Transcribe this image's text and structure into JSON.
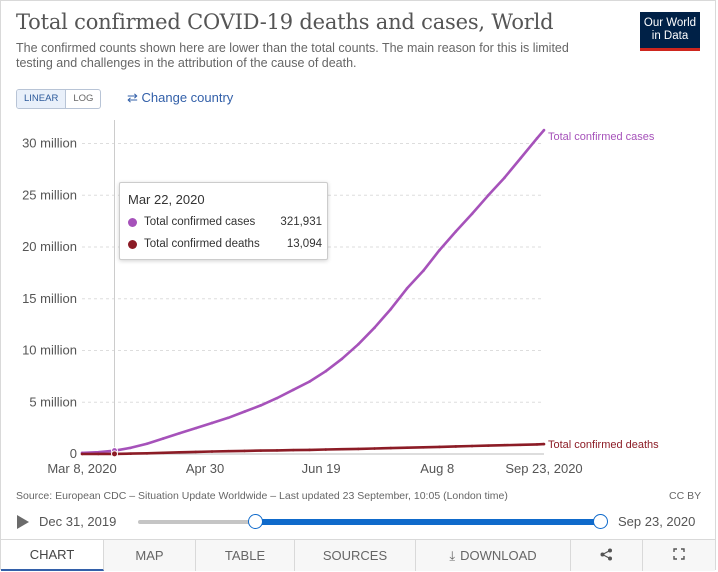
{
  "header": {
    "title": "Total confirmed COVID-19 deaths and cases, World",
    "subtitle": "The confirmed counts shown here are lower than the total counts. The main reason for this is limited testing and challenges in the attribution of the cause of death.",
    "logo_line1": "Our World",
    "logo_line2": "in Data"
  },
  "controls": {
    "linear_label": "LINEAR",
    "log_label": "LOG",
    "change_country_label": "Change country",
    "change_country_icon": "swap-arrows-icon"
  },
  "tooltip": {
    "date": "Mar 22, 2020",
    "rows": [
      {
        "label": "Total confirmed cases",
        "value": "321,931",
        "color": "#a652ba"
      },
      {
        "label": "Total confirmed deaths",
        "value": "13,094",
        "color": "#8c1c26"
      }
    ]
  },
  "chart_data": {
    "type": "line",
    "title": "Total confirmed COVID-19 deaths and cases, World",
    "xlabel": "",
    "ylabel": "",
    "x_ticks": [
      "Mar 8, 2020",
      "Apr 30",
      "Jun 19",
      "Aug 8",
      "Sep 23, 2020"
    ],
    "y_ticks": [
      "0",
      "5 million",
      "10 million",
      "15 million",
      "20 million",
      "25 million",
      "30 million"
    ],
    "ylim": [
      0,
      31500000
    ],
    "x_range_days": [
      0,
      199
    ],
    "grid": true,
    "hover_day": 14,
    "series": [
      {
        "name": "Total confirmed cases",
        "label": "Total confirmed cases",
        "color": "#a652ba",
        "x": [
          0,
          7,
          14,
          21,
          28,
          35,
          42,
          49,
          56,
          63,
          70,
          77,
          84,
          91,
          98,
          105,
          112,
          119,
          126,
          133,
          140,
          147,
          154,
          161,
          168,
          175,
          182,
          189,
          196,
          199
        ],
        "y": [
          110000,
          170000,
          321931,
          600000,
          1000000,
          1500000,
          2000000,
          2500000,
          3000000,
          3500000,
          4100000,
          4700000,
          5400000,
          6200000,
          7000000,
          8000000,
          9200000,
          10600000,
          12200000,
          14000000,
          16000000,
          17700000,
          19700000,
          21500000,
          23200000,
          25000000,
          26700000,
          28600000,
          30500000,
          31300000
        ]
      },
      {
        "name": "Total confirmed deaths",
        "label": "Total confirmed deaths",
        "color": "#8c1c26",
        "x": [
          0,
          7,
          14,
          21,
          28,
          35,
          42,
          49,
          56,
          63,
          70,
          77,
          84,
          91,
          98,
          105,
          112,
          119,
          126,
          133,
          140,
          147,
          154,
          161,
          168,
          175,
          182,
          189,
          196,
          199
        ],
        "y": [
          3500,
          6500,
          13094,
          35000,
          65000,
          115000,
          165000,
          205000,
          240000,
          270000,
          300000,
          325000,
          350000,
          375000,
          400000,
          430000,
          460000,
          490000,
          530000,
          570000,
          610000,
          650000,
          690000,
          730000,
          770000,
          810000,
          850000,
          890000,
          930000,
          960000
        ]
      }
    ]
  },
  "footer": {
    "source": "Source: European CDC – Situation Update Worldwide – Last updated 23 September, 10:05 (London time)",
    "license": "CC BY"
  },
  "timeline": {
    "start_label": "Dec 31, 2019",
    "end_label": "Sep 23, 2020",
    "selection_start_fraction": 0.255,
    "selection_end_fraction": 1.0
  },
  "tabs": [
    {
      "label": "CHART",
      "icon": null,
      "active": true
    },
    {
      "label": "MAP",
      "icon": null,
      "active": false
    },
    {
      "label": "TABLE",
      "icon": null,
      "active": false
    },
    {
      "label": "SOURCES",
      "icon": null,
      "active": false
    },
    {
      "label": "DOWNLOAD",
      "icon": "download-icon",
      "active": false
    },
    {
      "label": "",
      "icon": "share-icon",
      "active": false
    },
    {
      "label": "",
      "icon": "fullscreen-icon",
      "active": false
    }
  ]
}
